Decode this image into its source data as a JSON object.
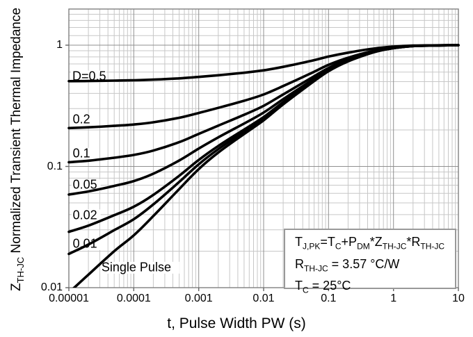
{
  "figure": {
    "x_axis_title": "t, Pulse Width PW (s)",
    "y_axis_title": {
      "prefix": "Z",
      "prefix_sub": "TH-JC",
      "rest": " Normalized Transient Thermal Impedance"
    }
  },
  "chart_data": {
    "type": "line",
    "title": "",
    "xlabel": "t, Pulse Width PW (s)",
    "ylabel": "Z_TH-JC Normalized Transient Thermal Impedance",
    "x_scale": "log",
    "y_scale": "log",
    "xlim": [
      1e-05,
      10
    ],
    "ylim": [
      0.01,
      2
    ],
    "grid": "log major+minor",
    "legend_position": "inline-curve-labels",
    "x_ticks": [
      {
        "v": 1e-05,
        "label": "0.00001"
      },
      {
        "v": 0.0001,
        "label": "0.0001"
      },
      {
        "v": 0.001,
        "label": "0.001"
      },
      {
        "v": 0.01,
        "label": "0.01"
      },
      {
        "v": 0.1,
        "label": "0.1"
      },
      {
        "v": 1,
        "label": "1"
      },
      {
        "v": 10,
        "label": "10"
      }
    ],
    "y_ticks": [
      {
        "v": 0.01,
        "label": "0.01"
      },
      {
        "v": 0.1,
        "label": "0.1"
      },
      {
        "v": 1,
        "label": "1"
      }
    ],
    "x": [
      1e-05,
      2e-05,
      5e-05,
      0.0001,
      0.0002,
      0.0005,
      0.001,
      0.002,
      0.005,
      0.01,
      0.02,
      0.05,
      0.1,
      0.2,
      0.5,
      1,
      2,
      5,
      10
    ],
    "series": [
      {
        "name": "D=0.5",
        "duty": 0.5,
        "values": [
          0.5046,
          0.5064,
          0.51,
          0.5135,
          0.5195,
          0.5325,
          0.5475,
          0.565,
          0.5925,
          0.62,
          0.6625,
          0.735,
          0.805,
          0.8675,
          0.9375,
          0.9725,
          0.9915,
          0.9975,
          1.0
        ]
      },
      {
        "name": "D=0.2",
        "duty": 0.2,
        "values": [
          0.2073,
          0.2102,
          0.216,
          0.2216,
          0.2312,
          0.252,
          0.276,
          0.304,
          0.348,
          0.392,
          0.46,
          0.576,
          0.688,
          0.788,
          0.9,
          0.956,
          0.9864,
          0.996,
          1.0
        ]
      },
      {
        "name": "D=0.1",
        "duty": 0.1,
        "values": [
          0.1082,
          0.1115,
          0.118,
          0.1243,
          0.1351,
          0.1585,
          0.1855,
          0.217,
          0.2665,
          0.316,
          0.3925,
          0.523,
          0.649,
          0.7615,
          0.8875,
          0.9505,
          0.9847,
          0.9955,
          1.0
        ]
      },
      {
        "name": "D=0.05",
        "duty": 0.05,
        "values": [
          0.0586,
          0.0622,
          0.069,
          0.0757,
          0.0871,
          0.1118,
          0.1403,
          0.1735,
          0.2258,
          0.278,
          0.3588,
          0.4965,
          0.6295,
          0.7483,
          0.8813,
          0.9478,
          0.9839,
          0.9953,
          1.0
        ]
      },
      {
        "name": "D=0.02",
        "duty": 0.02,
        "values": [
          0.0289,
          0.0325,
          0.0396,
          0.0465,
          0.0582,
          0.0837,
          0.1131,
          0.1474,
          0.2013,
          0.2552,
          0.3385,
          0.4806,
          0.6178,
          0.7403,
          0.8775,
          0.9461,
          0.9833,
          0.9951,
          1.0
        ]
      },
      {
        "name": "D=0.01",
        "duty": 0.01,
        "values": [
          0.019,
          0.0227,
          0.0298,
          0.0367,
          0.0486,
          0.0744,
          0.1041,
          0.1387,
          0.1932,
          0.2476,
          0.3318,
          0.4753,
          0.6139,
          0.7377,
          0.8763,
          0.9456,
          0.9832,
          0.9951,
          1.0
        ]
      },
      {
        "name": "Single Pulse",
        "duty": 0,
        "values": [
          0.0091,
          0.0128,
          0.02,
          0.027,
          0.039,
          0.065,
          0.095,
          0.13,
          0.185,
          0.24,
          0.325,
          0.47,
          0.61,
          0.735,
          0.875,
          0.945,
          0.983,
          0.995,
          1.0
        ]
      }
    ],
    "curve_labels": [
      {
        "text": "D=0.5",
        "t": 1.13e-05,
        "v": 0.555
      },
      {
        "text": "0.2",
        "t": 1.15e-05,
        "v": 0.243
      },
      {
        "text": "0.1",
        "t": 1.15e-05,
        "v": 0.128
      },
      {
        "text": "0.05",
        "t": 1.15e-05,
        "v": 0.0705
      },
      {
        "text": "0.02",
        "t": 1.15e-05,
        "v": 0.0397
      },
      {
        "text": "0.01",
        "t": 1.15e-05,
        "v": 0.023
      },
      {
        "text": "Single Pulse",
        "t": 3.18e-05,
        "v": 0.0147
      }
    ],
    "annotation": {
      "lines": [
        [
          [
            "T",
            "J,PK"
          ],
          [
            "=T",
            "C"
          ],
          [
            "+P",
            "DM"
          ],
          [
            "*Z",
            "TH-JC"
          ],
          [
            "*R",
            "TH-JC"
          ]
        ],
        [
          [
            "R",
            "TH-JC"
          ],
          [
            " = 3.57 °C/W",
            ""
          ]
        ],
        [
          [
            "T",
            "C"
          ],
          [
            " = 25°C",
            ""
          ]
        ]
      ]
    },
    "style": {
      "curve_color": "#000000",
      "grid_minor_color": "#c7c7c7",
      "grid_major_color": "#8f8f8f",
      "border_color": "#7f7f7f",
      "tick_color": "#666666",
      "background": "#ffffff"
    }
  }
}
